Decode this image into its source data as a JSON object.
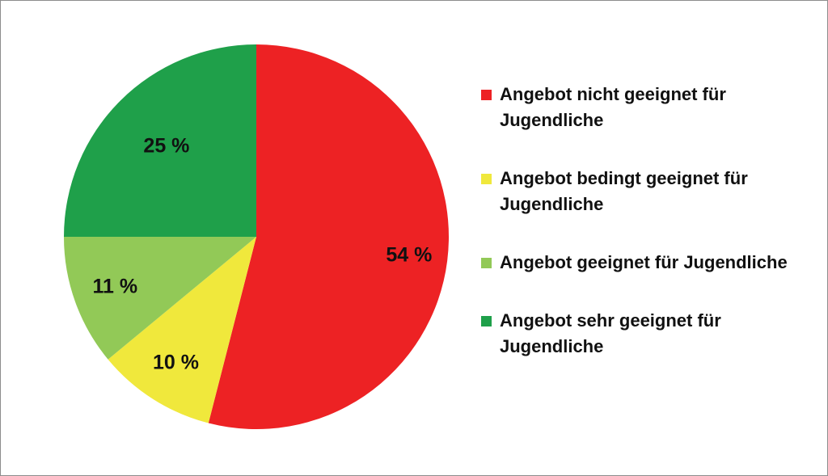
{
  "chart_data": {
    "type": "pie",
    "categories": [
      "Angebot nicht geeignet für Jugendliche",
      "Angebot bedingt geeignet für Jugendliche",
      "Angebot geeignet für Jugendliche",
      "Angebot sehr geeignet für Jugendliche"
    ],
    "values": [
      54,
      10,
      11,
      25
    ],
    "data_labels": [
      "54 %",
      "10 %",
      "11 %",
      "25 %"
    ],
    "colors": [
      "#ed2224",
      "#f0e83c",
      "#92c957",
      "#1fa04a"
    ],
    "title": "",
    "start_angle": "12 o'clock, clockwise",
    "legend_position": "right"
  },
  "legend": {
    "items": [
      {
        "label": "Angebot nicht geeignet für Jugendliche",
        "color": "#ed2224"
      },
      {
        "label": "Angebot bedingt geeignet für Jugendliche",
        "color": "#f0e83c"
      },
      {
        "label": "Angebot geeignet für Jugendliche",
        "color": "#92c957"
      },
      {
        "label": "Angebot sehr geeignet für Jugendliche",
        "color": "#1fa04a"
      }
    ]
  }
}
